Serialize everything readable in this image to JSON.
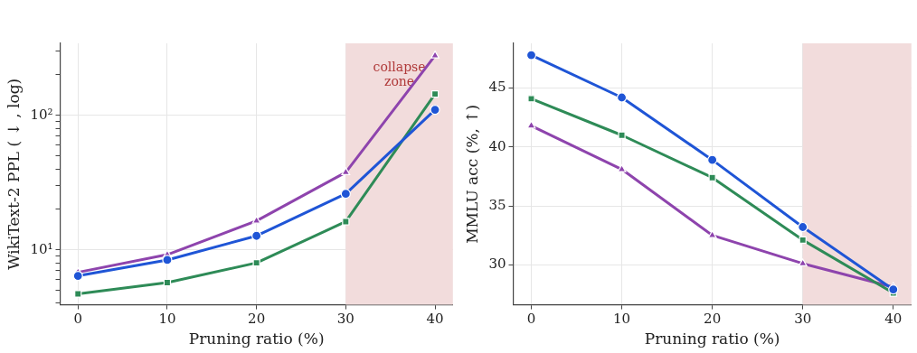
{
  "chart_data": [
    {
      "type": "line",
      "xlabel": "Pruning ratio (%)",
      "ylabel": "WikiText-2 PPL ( ↓ , log)",
      "x": [
        0,
        10,
        20,
        30,
        40
      ],
      "log": "y",
      "grid": true,
      "legend": false,
      "series": [
        {
          "color": "#1f55d6",
          "marker": "circle",
          "values": [
            6.4,
            8.4,
            12.7,
            26.1,
            110
          ]
        },
        {
          "color": "#2e8b57",
          "marker": "square",
          "values": [
            4.7,
            5.7,
            8.0,
            16.2,
            144
          ]
        },
        {
          "color": "#8e44ad",
          "marker": "triangle",
          "values": [
            6.8,
            9.2,
            16.4,
            37.7,
            278
          ]
        }
      ],
      "xlim": [
        -2,
        42
      ],
      "xticks": [
        0,
        10,
        20,
        30,
        40
      ],
      "ylim": [
        3.9,
        343
      ],
      "yticks": [
        {
          "value": 4,
          "label": null
        },
        {
          "value": 5,
          "label": null
        },
        {
          "value": 6,
          "label": null
        },
        {
          "value": 7,
          "label": null
        },
        {
          "value": 8,
          "label": null
        },
        {
          "value": 9,
          "label": null
        },
        {
          "value": 10,
          "label": "10¹"
        },
        {
          "value": 20,
          "label": null
        },
        {
          "value": 30,
          "label": null
        },
        {
          "value": 40,
          "label": null
        },
        {
          "value": 50,
          "label": null
        },
        {
          "value": 60,
          "label": null
        },
        {
          "value": 70,
          "label": null
        },
        {
          "value": 80,
          "label": null
        },
        {
          "value": 90,
          "label": null
        },
        {
          "value": 100,
          "label": "10²"
        },
        {
          "value": 200,
          "label": null
        },
        {
          "value": 300,
          "label": null
        }
      ],
      "bands": [
        {
          "axis": "x",
          "from": 30,
          "to": 42,
          "label": "collapse zone",
          "color": "#f2dcdc"
        }
      ]
    },
    {
      "type": "line",
      "xlabel": "Pruning ratio (%)",
      "ylabel": "MMLU acc (%, ↑)",
      "x": [
        0,
        10,
        20,
        30,
        40
      ],
      "grid": true,
      "legend": false,
      "series": [
        {
          "color": "#1f55d6",
          "marker": "circle",
          "values": [
            47.8,
            44.2,
            38.9,
            33.2,
            27.9
          ]
        },
        {
          "color": "#2e8b57",
          "marker": "square",
          "values": [
            44.1,
            41.0,
            37.4,
            32.1,
            27.6
          ]
        },
        {
          "color": "#8e44ad",
          "marker": "triangle",
          "values": [
            41.8,
            38.1,
            32.5,
            30.1,
            28.1
          ]
        }
      ],
      "xlim": [
        -2,
        42
      ],
      "xticks": [
        0,
        10,
        20,
        30,
        40
      ],
      "ylim": [
        26.6,
        48.8
      ],
      "yticks": [
        30,
        35,
        40,
        45
      ],
      "bands": [
        {
          "axis": "x",
          "from": 30,
          "to": 42,
          "color": "#f2dcdc"
        }
      ]
    }
  ]
}
